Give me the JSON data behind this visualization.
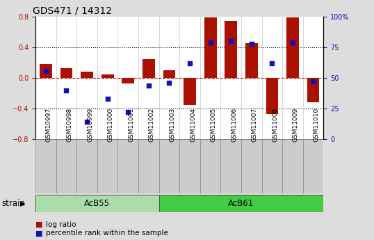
{
  "title": "GDS471 / 14312",
  "samples": [
    "GSM10997",
    "GSM10998",
    "GSM10999",
    "GSM11000",
    "GSM11001",
    "GSM11002",
    "GSM11003",
    "GSM11004",
    "GSM11005",
    "GSM11006",
    "GSM11007",
    "GSM11008",
    "GSM11009",
    "GSM11010"
  ],
  "log_ratio": [
    0.18,
    0.13,
    0.08,
    0.05,
    -0.07,
    0.25,
    0.1,
    -0.35,
    0.79,
    0.75,
    0.46,
    -0.47,
    0.79,
    -0.32
  ],
  "percentile_raw": [
    56,
    40,
    14,
    33,
    22,
    44,
    46,
    62,
    79,
    80,
    78,
    62,
    79,
    47
  ],
  "groups": [
    {
      "label": "AcB55",
      "start": 0,
      "end": 6,
      "color": "#aaddaa"
    },
    {
      "label": "AcB61",
      "start": 6,
      "end": 14,
      "color": "#44cc44"
    }
  ],
  "bar_color": "#aa1100",
  "dot_color": "#1111bb",
  "ylim_left": [
    -0.8,
    0.8
  ],
  "ylim_right": [
    0,
    100
  ],
  "yticks_left": [
    -0.8,
    -0.4,
    0.0,
    0.4,
    0.8
  ],
  "yticks_right": [
    0,
    25,
    50,
    75,
    100
  ],
  "ytick_labels_right": [
    "0",
    "25",
    "50",
    "75",
    "100%"
  ],
  "hline_dotted": [
    0.4,
    -0.4
  ],
  "hline_dashed": [
    0.0
  ],
  "title_fontsize": 10,
  "tick_fontsize": 7,
  "label_fontsize": 8.5,
  "legend_fontsize": 7.5
}
